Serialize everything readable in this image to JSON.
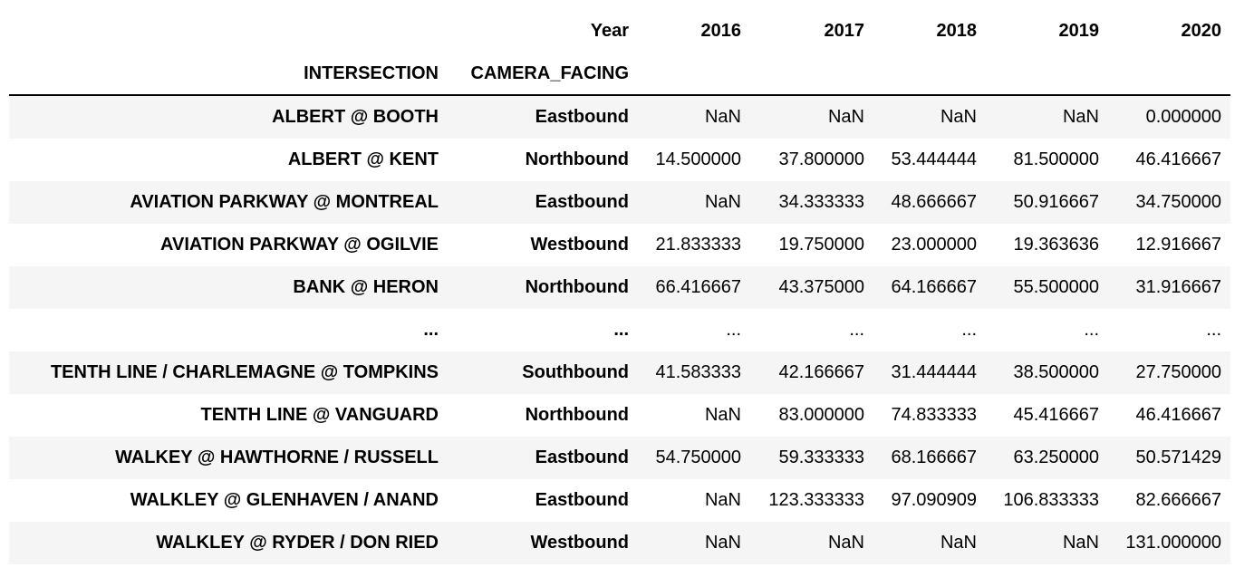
{
  "table": {
    "column_level_name": "Year",
    "index_names": [
      "INTERSECTION",
      "CAMERA_FACING"
    ],
    "years": [
      "2016",
      "2017",
      "2018",
      "2019",
      "2020"
    ],
    "rows": [
      {
        "intersection": "ALBERT @ BOOTH",
        "camera_facing": "Eastbound",
        "values": [
          "NaN",
          "NaN",
          "NaN",
          "NaN",
          "0.000000"
        ]
      },
      {
        "intersection": "ALBERT @ KENT",
        "camera_facing": "Northbound",
        "values": [
          "14.500000",
          "37.800000",
          "53.444444",
          "81.500000",
          "46.416667"
        ]
      },
      {
        "intersection": "AVIATION PARKWAY @ MONTREAL",
        "camera_facing": "Eastbound",
        "values": [
          "NaN",
          "34.333333",
          "48.666667",
          "50.916667",
          "34.750000"
        ]
      },
      {
        "intersection": "AVIATION PARKWAY @ OGILVIE",
        "camera_facing": "Westbound",
        "values": [
          "21.833333",
          "19.750000",
          "23.000000",
          "19.363636",
          "12.916667"
        ]
      },
      {
        "intersection": "BANK @ HERON",
        "camera_facing": "Northbound",
        "values": [
          "66.416667",
          "43.375000",
          "64.166667",
          "55.500000",
          "31.916667"
        ]
      },
      {
        "intersection": "...",
        "camera_facing": "...",
        "values": [
          "...",
          "...",
          "...",
          "...",
          "..."
        ]
      },
      {
        "intersection": "TENTH LINE / CHARLEMAGNE @ TOMPKINS",
        "camera_facing": "Southbound",
        "values": [
          "41.583333",
          "42.166667",
          "31.444444",
          "38.500000",
          "27.750000"
        ]
      },
      {
        "intersection": "TENTH LINE @ VANGUARD",
        "camera_facing": "Northbound",
        "values": [
          "NaN",
          "83.000000",
          "74.833333",
          "45.416667",
          "46.416667"
        ]
      },
      {
        "intersection": "WALKEY @ HAWTHORNE / RUSSELL",
        "camera_facing": "Eastbound",
        "values": [
          "54.750000",
          "59.333333",
          "68.166667",
          "63.250000",
          "50.571429"
        ]
      },
      {
        "intersection": "WALKLEY @ GLENHAVEN / ANAND",
        "camera_facing": "Eastbound",
        "values": [
          "NaN",
          "123.333333",
          "97.090909",
          "106.833333",
          "82.666667"
        ]
      },
      {
        "intersection": "WALKLEY @ RYDER / DON RIED",
        "camera_facing": "Westbound",
        "values": [
          "NaN",
          "NaN",
          "NaN",
          "NaN",
          "131.000000"
        ]
      }
    ]
  }
}
